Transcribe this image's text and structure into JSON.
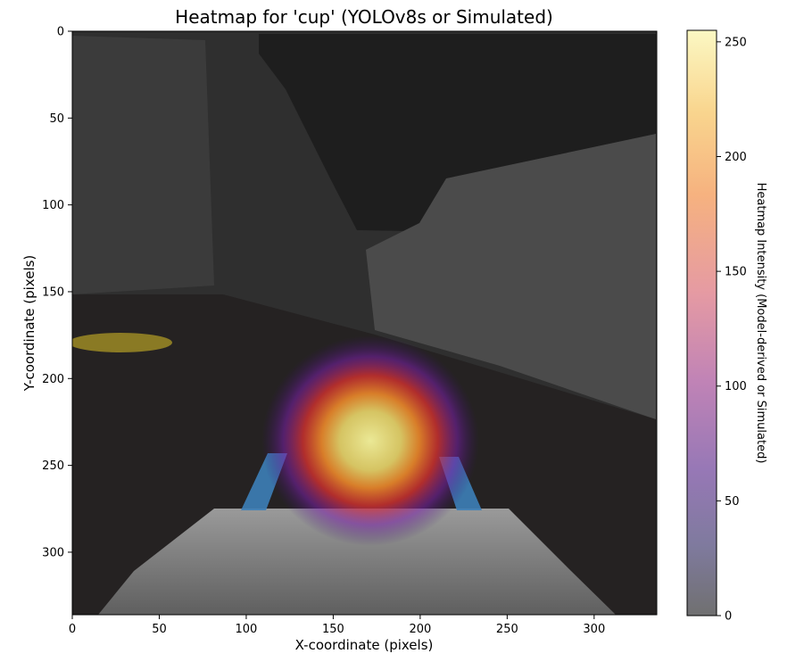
{
  "chart_data": {
    "type": "heatmap",
    "title": "Heatmap for 'cup' (YOLOv8s or Simulated)",
    "xlabel": "X-coordinate (pixels)",
    "ylabel": "Y-coordinate (pixels)",
    "xlim": [
      0,
      336
    ],
    "ylim": [
      336,
      0
    ],
    "x_ticks": [
      0,
      50,
      100,
      150,
      200,
      250,
      300
    ],
    "y_ticks": [
      0,
      50,
      100,
      150,
      200,
      250,
      300
    ],
    "colorbar": {
      "label": "Heatmap Intensity (Model-derived or Simulated)",
      "range": [
        0,
        255
      ],
      "ticks": [
        0,
        50,
        100,
        150,
        200,
        250
      ],
      "colormap": "inferno"
    },
    "hotspot": {
      "center_x": 170,
      "center_y": 235,
      "radius_x": 45,
      "radius_y": 42,
      "peak_intensity": 255
    },
    "background_image": "grayscale camera frame: wall, shelf, table edge, white object in foreground",
    "grid": false
  },
  "colors": {
    "axes_edge": "#000000",
    "hot_core": "#f7f4a0",
    "hot_mid": "#f08a2a",
    "hot_outer": "#7a1fa8"
  }
}
